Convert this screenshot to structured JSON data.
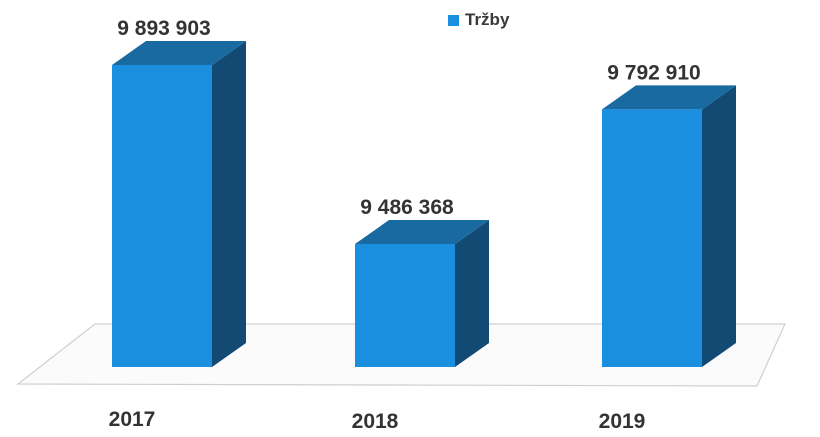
{
  "chart_data": {
    "type": "bar",
    "style": "3d-column",
    "categories": [
      "2017",
      "2018",
      "2019"
    ],
    "series": [
      {
        "name": "Tržby",
        "values": [
          9893903,
          9486368,
          9792910
        ],
        "value_labels": [
          "9 893 903",
          "9 486 368",
          "9 792 910"
        ]
      }
    ],
    "ylim": [
      9380000,
      9920000
    ],
    "legend_position": "top",
    "grid": false,
    "colors": {
      "front": "#1a8fe0",
      "top": "#1a6aa2",
      "side": "#134a74",
      "floor": "#cfcfcf",
      "text": "#333333"
    }
  }
}
